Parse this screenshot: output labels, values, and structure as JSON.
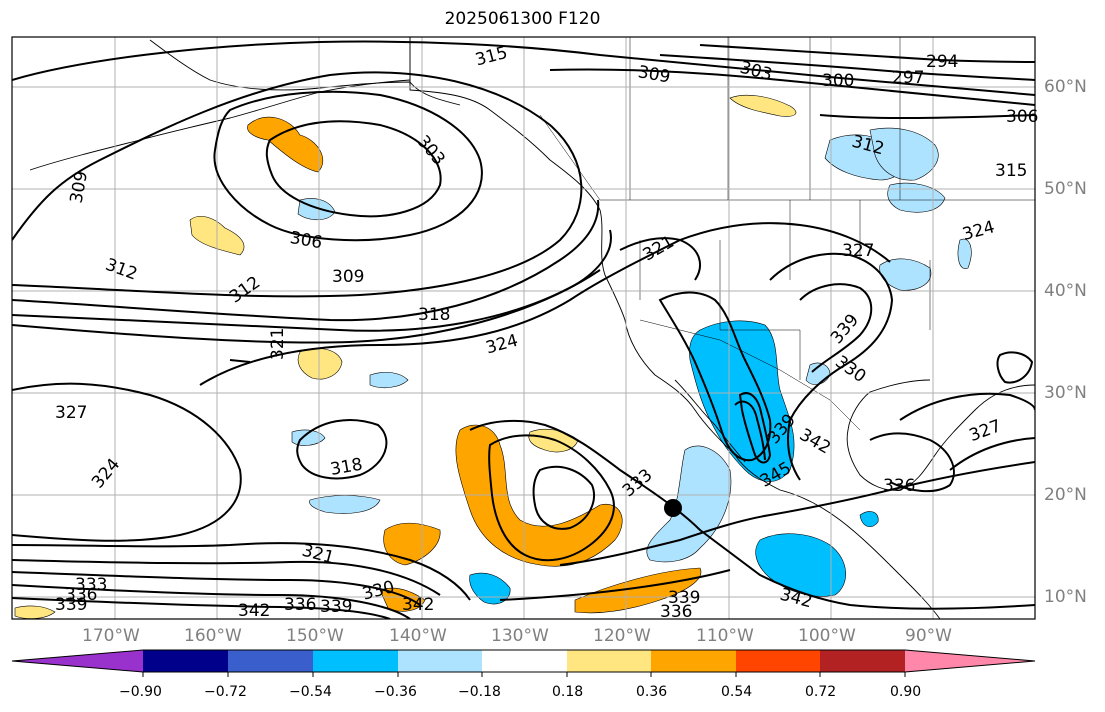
{
  "title": "2025061300 F120",
  "latitude_labels": [
    "60°N",
    "50°N",
    "40°N",
    "30°N",
    "20°N",
    "10°N"
  ],
  "longitude_labels": [
    "170°W",
    "160°W",
    "150°W",
    "140°W",
    "130°W",
    "120°W",
    "110°W",
    "100°W",
    "90°W"
  ],
  "contour_labels": [
    "315",
    "309",
    "303",
    "300",
    "297",
    "294",
    "306",
    "312",
    "315",
    "324",
    "303",
    "309",
    "306",
    "309",
    "312",
    "312",
    "318",
    "321",
    "324",
    "321",
    "327",
    "339",
    "330",
    "327",
    "327",
    "324",
    "318",
    "333",
    "339",
    "342",
    "345",
    "336",
    "321",
    "333",
    "336",
    "339",
    "342",
    "336",
    "339",
    "342",
    "330",
    "339",
    "336",
    "342"
  ],
  "colorbar": {
    "tick_labels": [
      "−0.90",
      "−0.72",
      "−0.54",
      "−0.36",
      "−0.18",
      "0.18",
      "0.36",
      "0.54",
      "0.72",
      "0.90"
    ],
    "colors": [
      "#9932cc",
      "#00008b",
      "#3a5fcd",
      "#00bfff",
      "#aee3ff",
      "#ffffff",
      "#ffe680",
      "#ffa500",
      "#ff4500",
      "#b22222",
      "#ff88aa"
    ]
  },
  "legend_marker": "storm-center-dot"
}
